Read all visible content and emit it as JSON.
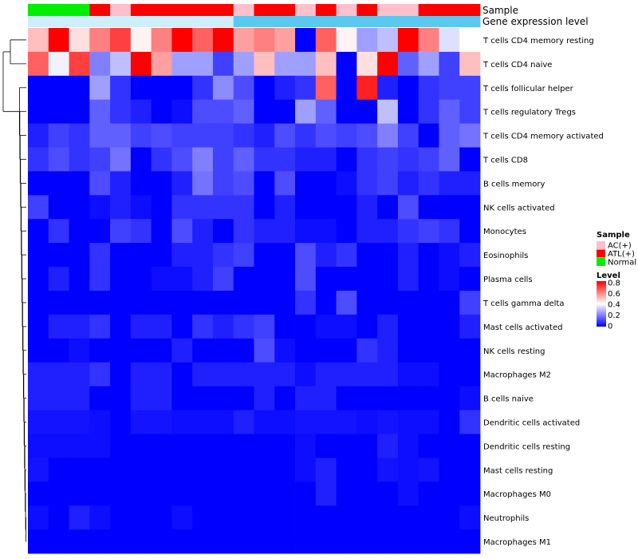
{
  "chart_data": {
    "type": "heatmap",
    "annotation_tracks": [
      "Sample",
      "Gene expression level"
    ],
    "sample_groups": [
      "N",
      "N",
      "N",
      "A",
      "C",
      "A",
      "A",
      "A",
      "A",
      "A",
      "C",
      "A",
      "A",
      "C",
      "A",
      "C",
      "A",
      "C",
      "C",
      "A",
      "A",
      "A"
    ],
    "expression_track_color": "#5bc8f0",
    "expression_track_pale_color": "#cdeefa",
    "expression_pale_columns": 10,
    "rows": [
      "T cells CD4 memory resting",
      "T cells CD4 naive",
      "T cells follicular helper",
      "T cells regulatory  Tregs",
      "T cells CD4 memory activated",
      "T cells CD8",
      "B cells memory",
      "NK cells activated",
      "Monocytes",
      "Eosinophils",
      "Plasma cells",
      "T cells gamma delta",
      "Mast cells activated",
      "NK cells resting",
      "Macrophages M2",
      "B cells naive",
      "Dendritic cells activated",
      "Dendritic cells resting",
      "Mast cells resting",
      "Macrophages M0",
      "Neutrophils",
      "Macrophages M1"
    ],
    "values": [
      [
        0.5,
        0.8,
        0.45,
        0.6,
        0.7,
        0.42,
        0.6,
        0.8,
        0.65,
        0.8,
        0.55,
        0.6,
        0.55,
        0.0,
        0.65,
        0.42,
        0.25,
        0.3,
        0.8,
        0.6,
        0.35,
        0.4
      ],
      [
        0.65,
        0.38,
        0.7,
        0.2,
        0.3,
        0.8,
        0.55,
        0.25,
        0.25,
        0.1,
        0.25,
        0.5,
        0.25,
        0.25,
        0.5,
        0.0,
        0.45,
        0.8,
        0.15,
        0.25,
        0.1,
        0.5
      ],
      [
        0.0,
        0.0,
        0.0,
        0.25,
        0.08,
        0.0,
        0.0,
        0.0,
        0.08,
        0.22,
        0.12,
        0.0,
        0.05,
        0.08,
        0.65,
        0.0,
        0.75,
        0.05,
        0.0,
        0.08,
        0.1,
        0.1
      ],
      [
        0.0,
        0.0,
        0.0,
        0.15,
        0.08,
        0.05,
        0.0,
        0.02,
        0.12,
        0.12,
        0.15,
        0.0,
        0.0,
        0.25,
        0.15,
        0.0,
        0.0,
        0.3,
        0.0,
        0.08,
        0.15,
        0.1
      ],
      [
        0.05,
        0.1,
        0.08,
        0.15,
        0.15,
        0.1,
        0.12,
        0.1,
        0.1,
        0.1,
        0.08,
        0.05,
        0.12,
        0.08,
        0.12,
        0.1,
        0.12,
        0.2,
        0.1,
        0.0,
        0.15,
        0.18
      ],
      [
        0.08,
        0.12,
        0.08,
        0.1,
        0.18,
        0.0,
        0.08,
        0.12,
        0.2,
        0.1,
        0.15,
        0.08,
        0.08,
        0.05,
        0.05,
        0.0,
        0.08,
        0.1,
        0.08,
        0.1,
        0.15,
        0.0
      ],
      [
        0.0,
        0.0,
        0.0,
        0.12,
        0.05,
        0.0,
        0.0,
        0.05,
        0.18,
        0.1,
        0.12,
        0.0,
        0.12,
        0.0,
        0.0,
        0.02,
        0.08,
        0.1,
        0.05,
        0.08,
        0.05,
        0.05
      ],
      [
        0.1,
        0.0,
        0.0,
        0.02,
        0.05,
        0.02,
        0.0,
        0.08,
        0.08,
        0.08,
        0.08,
        0.0,
        0.05,
        0.0,
        0.0,
        0.0,
        0.05,
        0.0,
        0.12,
        0.0,
        0.0,
        0.0
      ],
      [
        0.0,
        0.08,
        0.0,
        0.0,
        0.1,
        0.08,
        0.0,
        0.12,
        0.05,
        0.0,
        0.08,
        0.05,
        0.05,
        0.02,
        0.02,
        0.0,
        0.05,
        0.05,
        0.08,
        0.1,
        0.08,
        0.0
      ],
      [
        0.0,
        0.0,
        0.0,
        0.08,
        0.0,
        0.0,
        0.0,
        0.05,
        0.05,
        0.08,
        0.1,
        0.0,
        0.0,
        0.12,
        0.05,
        0.08,
        0.0,
        0.0,
        0.05,
        0.0,
        0.02,
        0.05
      ],
      [
        0.0,
        0.05,
        0.0,
        0.08,
        0.0,
        0.0,
        0.02,
        0.02,
        0.05,
        0.1,
        0.0,
        0.0,
        0.0,
        0.12,
        0.0,
        0.0,
        0.0,
        0.0,
        0.05,
        0.0,
        0.02,
        0.0
      ],
      [
        0.0,
        0.0,
        0.0,
        0.0,
        0.0,
        0.0,
        0.0,
        0.0,
        0.0,
        0.0,
        0.0,
        0.0,
        0.0,
        0.08,
        0.0,
        0.12,
        0.0,
        0.0,
        0.0,
        0.0,
        0.0,
        0.1
      ],
      [
        0.0,
        0.05,
        0.05,
        0.08,
        0.0,
        0.05,
        0.05,
        0.0,
        0.08,
        0.05,
        0.08,
        0.1,
        0.0,
        0.0,
        0.02,
        0.02,
        0.0,
        0.05,
        0.0,
        0.0,
        0.0,
        0.05
      ],
      [
        0.0,
        0.0,
        0.02,
        0.0,
        0.0,
        0.0,
        0.0,
        0.05,
        0.0,
        0.0,
        0.0,
        0.12,
        0.02,
        0.0,
        0.0,
        0.0,
        0.08,
        0.05,
        0.0,
        0.0,
        0.0,
        0.0
      ],
      [
        0.05,
        0.05,
        0.05,
        0.08,
        0.0,
        0.05,
        0.05,
        0.0,
        0.05,
        0.05,
        0.05,
        0.05,
        0.05,
        0.02,
        0.05,
        0.05,
        0.05,
        0.05,
        0.02,
        0.02,
        0.0,
        0.0
      ],
      [
        0.05,
        0.05,
        0.05,
        0.0,
        0.0,
        0.05,
        0.05,
        0.0,
        0.0,
        0.0,
        0.0,
        0.05,
        0.0,
        0.05,
        0.05,
        0.0,
        0.0,
        0.0,
        0.0,
        0.0,
        0.0,
        0.02
      ],
      [
        0.03,
        0.03,
        0.03,
        0.02,
        0.0,
        0.03,
        0.03,
        0.02,
        0.02,
        0.02,
        0.05,
        0.02,
        0.02,
        0.03,
        0.03,
        0.03,
        0.02,
        0.03,
        0.02,
        0.02,
        0.0,
        0.08
      ],
      [
        0.02,
        0.02,
        0.02,
        0.02,
        0.0,
        0.0,
        0.0,
        0.0,
        0.0,
        0.0,
        0.0,
        0.0,
        0.0,
        0.02,
        0.0,
        0.0,
        0.0,
        0.05,
        0.02,
        0.0,
        0.0,
        0.0
      ],
      [
        0.03,
        0.0,
        0.0,
        0.0,
        0.0,
        0.0,
        0.0,
        0.0,
        0.0,
        0.0,
        0.0,
        0.0,
        0.0,
        0.02,
        0.05,
        0.0,
        0.0,
        0.03,
        0.02,
        0.03,
        0.0,
        0.0
      ],
      [
        0.0,
        0.0,
        0.0,
        0.0,
        0.0,
        0.0,
        0.0,
        0.0,
        0.0,
        0.0,
        0.0,
        0.0,
        0.0,
        0.0,
        0.05,
        0.0,
        0.0,
        0.0,
        0.02,
        0.0,
        0.0,
        0.0
      ],
      [
        0.02,
        0.0,
        0.05,
        0.02,
        0.0,
        0.0,
        0.0,
        0.02,
        0.0,
        0.0,
        0.0,
        0.0,
        0.0,
        0.0,
        0.0,
        0.0,
        0.0,
        0.0,
        0.0,
        0.0,
        0.0,
        0.02
      ],
      [
        0.0,
        0.0,
        0.0,
        0.0,
        0.0,
        0.0,
        0.0,
        0.0,
        0.0,
        0.0,
        0.0,
        0.0,
        0.0,
        0.0,
        0.0,
        0.0,
        0.0,
        0.0,
        0.0,
        0.0,
        0.0,
        0.0
      ]
    ],
    "color_scale": {
      "min": 0,
      "mid": 0.4,
      "max": 0.8,
      "low": "#0000ff",
      "midcolor": "#ffffff",
      "high": "#ff0000"
    },
    "legend_sample": {
      "title": "Sample",
      "items": [
        {
          "key": "C",
          "label": "AC(+)",
          "color": "#ffc0cb"
        },
        {
          "key": "A",
          "label": "ATL(+)",
          "color": "#ff0000"
        },
        {
          "key": "N",
          "label": "Normal",
          "color": "#00ee00"
        }
      ]
    },
    "legend_level": {
      "title": "Level",
      "ticks": [
        "0.8",
        "0.6",
        "0.4",
        "0.2",
        "0"
      ]
    }
  }
}
